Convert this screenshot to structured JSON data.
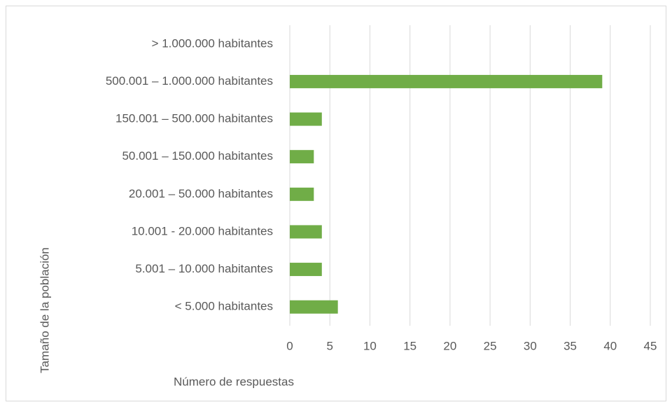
{
  "chart_data": {
    "type": "bar",
    "orientation": "horizontal",
    "categories": [
      "< 5.000 habitantes",
      "5.001 – 10.000 habitantes",
      "10.001 - 20.000 habitantes",
      "20.001 – 50.000 habitantes",
      "50.001 – 150.000 habitantes",
      "150.001 – 500.000 habitantes",
      "500.001 – 1.000.000 habitantes",
      "> 1.000.000 habitantes"
    ],
    "values": [
      6,
      4,
      4,
      3,
      3,
      4,
      39,
      0
    ],
    "color": "#70ad47",
    "x_label": "Número de respuestas",
    "y_label": "Tamaño de la población",
    "xlim": [
      0,
      45
    ],
    "xticks": [
      0,
      5,
      10,
      15,
      20,
      25,
      30,
      35,
      40,
      45
    ],
    "grid": true
  }
}
